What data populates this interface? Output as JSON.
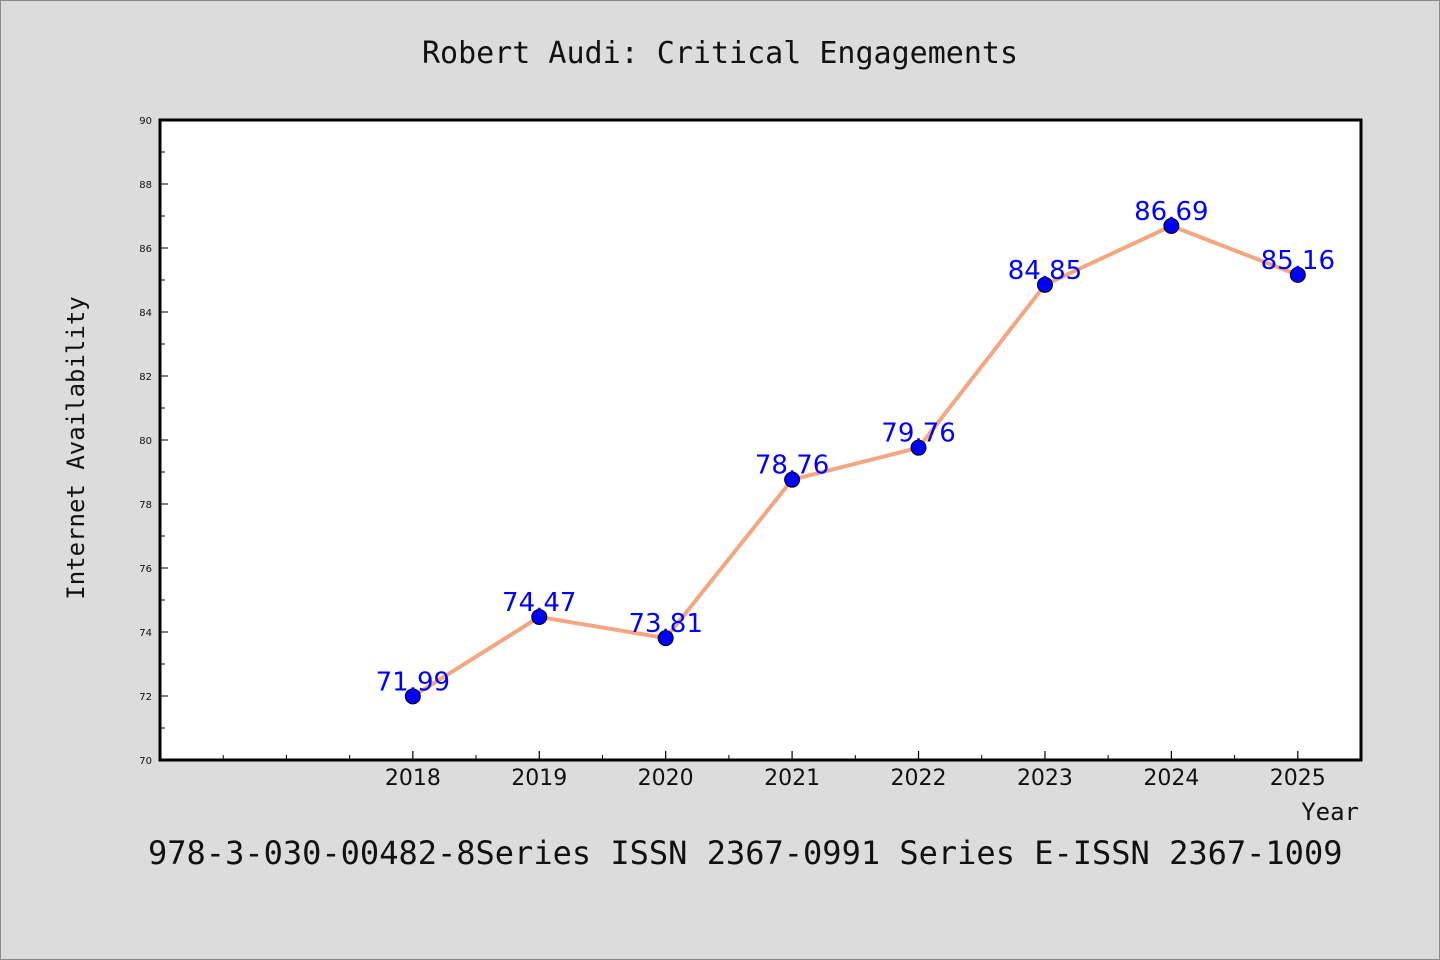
{
  "chart_data": {
    "type": "line",
    "title": "Robert Audi: Critical Engagements",
    "xlabel": "Year",
    "ylabel": "Internet Availability",
    "footer": "978-3-030-00482-8Series ISSN 2367-0991 Series E-ISSN 2367-1009",
    "x": [
      2018,
      2019,
      2020,
      2021,
      2022,
      2023,
      2024,
      2025
    ],
    "x_tick_labels": [
      "2018",
      "2019",
      "2020",
      "2021",
      "2022",
      "2023",
      "2024",
      "2025"
    ],
    "series": [
      {
        "values": [
          71.99,
          74.47,
          73.81,
          78.76,
          79.76,
          84.85,
          86.69,
          85.16
        ],
        "labels": [
          "71.99",
          "74.47",
          "73.81",
          "78.76",
          "79.76",
          "84.85",
          "86.69",
          "85.16"
        ]
      }
    ],
    "xlim": [
      2016,
      2025.5
    ],
    "ylim": [
      70,
      90
    ],
    "y_ticks": [
      70,
      72,
      74,
      76,
      78,
      80,
      82,
      84,
      86,
      88,
      90
    ],
    "y_tick_labels": [
      "70",
      "72",
      "74",
      "76",
      "78",
      "80",
      "82",
      "84",
      "86",
      "88",
      "90"
    ],
    "grid": false,
    "colors": {
      "line": "#f4a582",
      "marker": "#0000ff",
      "data_label": "#0000ff",
      "plot_background": "#ffffff",
      "page_background": "#dcdcdc"
    }
  }
}
